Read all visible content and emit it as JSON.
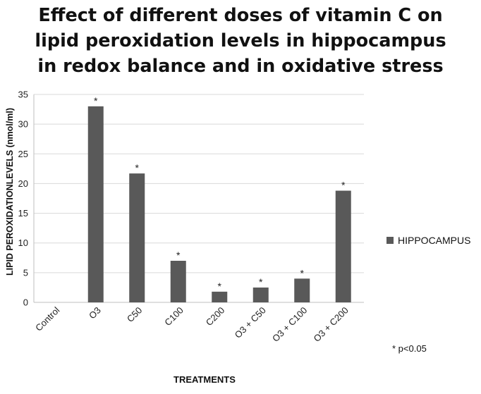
{
  "chart_data": {
    "type": "bar",
    "title_lines": [
      "Effect of different doses of vitamin C on",
      "lipid peroxidation levels in hippocampus",
      "in redox balance and in oxidative stress"
    ],
    "xlabel": "TREATMENTS",
    "ylabel": "LIPID PEROXIDATIONLEVELS (nmol/ml)",
    "categories": [
      "Control",
      "O3",
      "C50",
      "C100",
      "C200",
      "O3 + C50",
      "O3 + C100",
      "O3 + C200"
    ],
    "series": [
      {
        "name": "HIPPOCAMPUS",
        "values": [
          0,
          33,
          21.7,
          7,
          1.8,
          2.5,
          4,
          18.8
        ]
      }
    ],
    "significance": [
      "",
      "*",
      "*",
      "*",
      "*",
      "*",
      "*",
      "*"
    ],
    "ylim": [
      0,
      35
    ],
    "yticks": [
      0,
      5,
      10,
      15,
      20,
      25,
      30,
      35
    ],
    "grid": true,
    "legend_position": "right",
    "note": "* p<0.05",
    "colors": {
      "bar": "#595959",
      "grid": "#d9d9d9",
      "axis": "#bfbfbf"
    }
  }
}
